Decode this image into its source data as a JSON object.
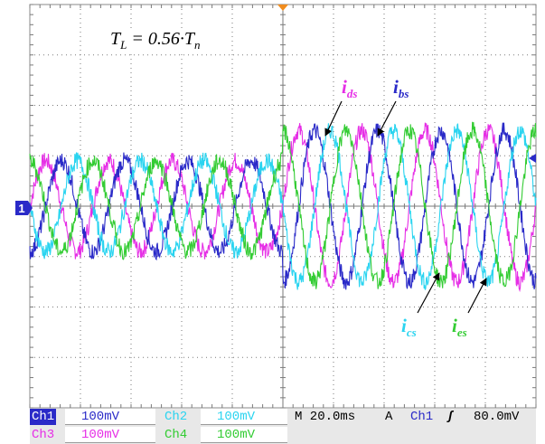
{
  "chart_data": {
    "type": "line",
    "title": "",
    "annotation": {
      "var": "T",
      "sub": "L",
      "mid": " = 0.56·",
      "var2": "T",
      "sub2": "n"
    },
    "grid": true,
    "divisions": {
      "x": 10,
      "y": 8
    },
    "time_per_div_ms": 20.0,
    "load_step_ms": 100,
    "volts_per_div_mV": 100,
    "x_range_ms": [
      0,
      200
    ],
    "y_range_div": [
      -4,
      4
    ],
    "series": [
      {
        "name": "i",
        "sub": "ds",
        "color": "#e62ee6",
        "amp_div_before": 0.9,
        "amp_div_after": 1.5,
        "phase_deg": 0
      },
      {
        "name": "i",
        "sub": "bs",
        "color": "#2a2ac8",
        "amp_div_before": 0.9,
        "amp_div_after": 1.5,
        "phase_deg": 90
      },
      {
        "name": "i",
        "sub": "cs",
        "color": "#2ad4f0",
        "amp_div_before": 0.9,
        "amp_div_after": 1.5,
        "phase_deg": 180
      },
      {
        "name": "i",
        "sub": "es",
        "color": "#33cc33",
        "amp_div_before": 0.9,
        "amp_div_after": 1.5,
        "phase_deg": 270
      }
    ],
    "period_ms": 25
  },
  "marker": "1",
  "status": {
    "ch1_label": "Ch1",
    "ch1_value": "100mV",
    "ch2_label": "Ch2",
    "ch2_value": "100mV",
    "ch3_label": "Ch3",
    "ch3_value": "100mV",
    "ch4_label": "Ch4",
    "ch4_value": "100mV",
    "timebase": "M 20.0ms",
    "trigger_mode": "A",
    "trigger_source": "Ch1",
    "trigger_slope": "ʃ",
    "trigger_level": "80.0mV"
  },
  "colors": {
    "ch1": "#2a2ac8",
    "ch2": "#2ad4f0",
    "ch3": "#e62ee6",
    "ch4": "#33cc33",
    "grid": "#7a7a7a",
    "trigger": "#f08c1e"
  }
}
